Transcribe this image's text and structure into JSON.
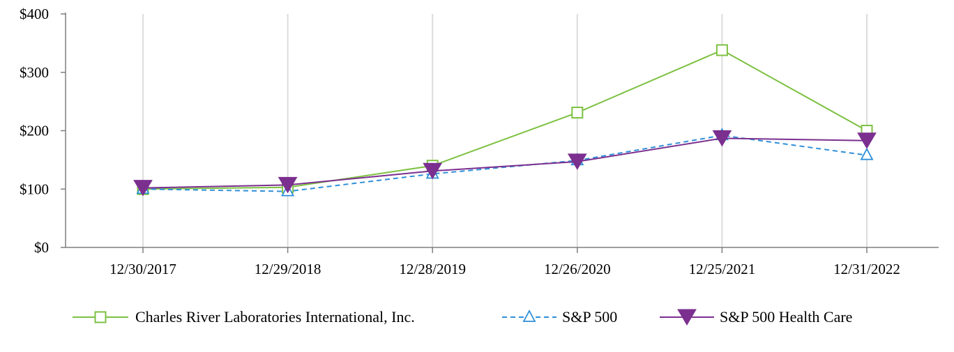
{
  "chart_data": {
    "type": "line",
    "title": "",
    "xlabel": "",
    "ylabel": "",
    "categories": [
      "12/30/2017",
      "12/29/2018",
      "12/28/2019",
      "12/26/2020",
      "12/25/2021",
      "12/31/2022"
    ],
    "ylim": [
      0,
      400
    ],
    "yticks": [
      0,
      100,
      200,
      300,
      400
    ],
    "ytick_labels": [
      "$0",
      "$100",
      "$200",
      "$300",
      "$400"
    ],
    "grid": "vertical",
    "legend_position": "bottom",
    "series": [
      {
        "name": "Charles River Laboratories International, Inc.",
        "values": [
          100,
          103,
          140,
          231,
          338,
          200
        ],
        "color": "#7dc142",
        "line_style": "solid",
        "marker": "open-square"
      },
      {
        "name": "S&P 500",
        "values": [
          100,
          96,
          126,
          149,
          192,
          158
        ],
        "color": "#2f8fd8",
        "line_style": "dashed",
        "marker": "open-triangle-up"
      },
      {
        "name": "S&P 500 Health Care",
        "values": [
          102,
          107,
          131,
          147,
          187,
          183
        ],
        "color": "#7b2f8f",
        "line_style": "solid",
        "marker": "filled-triangle-down"
      }
    ]
  }
}
